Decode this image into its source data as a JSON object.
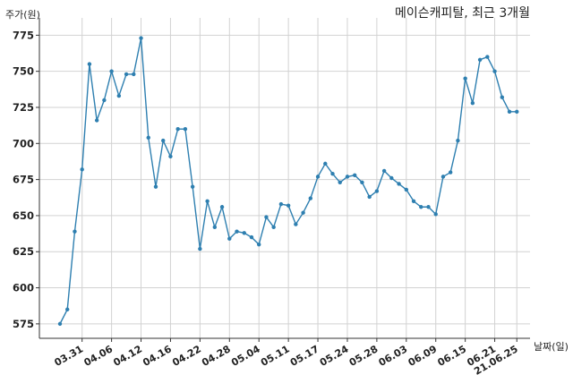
{
  "chart_data": {
    "type": "line",
    "title": "메이슨캐피탈, 최근 3개월",
    "ylabel": "주가(원)",
    "xlabel": "날짜(일)",
    "ylim": [
      565,
      787
    ],
    "yticks": [
      575,
      600,
      625,
      650,
      675,
      700,
      725,
      750,
      775
    ],
    "grid": true,
    "line_color": "#2e7fb0",
    "x_tick_labels": [
      "03.31",
      "04.06",
      "04.12",
      "04.16",
      "04.22",
      "04.28",
      "05.04",
      "05.11",
      "05.17",
      "05.24",
      "05.28",
      "06.03",
      "06.09",
      "06.15",
      "06.21",
      "21.06.25"
    ],
    "x_tick_indices": [
      3,
      7,
      11,
      15,
      19,
      23,
      27,
      31,
      35,
      39,
      43,
      47,
      51,
      55,
      59,
      62
    ],
    "series": [
      {
        "values": [
          575,
          585,
          639,
          682,
          755,
          716,
          730,
          750,
          733,
          748,
          748,
          773,
          704,
          670,
          702,
          691,
          710,
          710,
          670,
          627,
          660,
          642,
          656,
          634,
          639,
          638,
          635,
          630,
          649,
          642,
          658,
          657,
          644,
          652,
          662,
          677,
          686,
          679,
          673,
          677,
          678,
          673,
          663,
          667,
          681,
          676,
          672,
          668,
          660,
          656,
          656,
          651,
          677,
          680,
          702,
          745,
          728,
          758,
          760,
          750,
          732,
          722,
          722
        ]
      }
    ]
  }
}
